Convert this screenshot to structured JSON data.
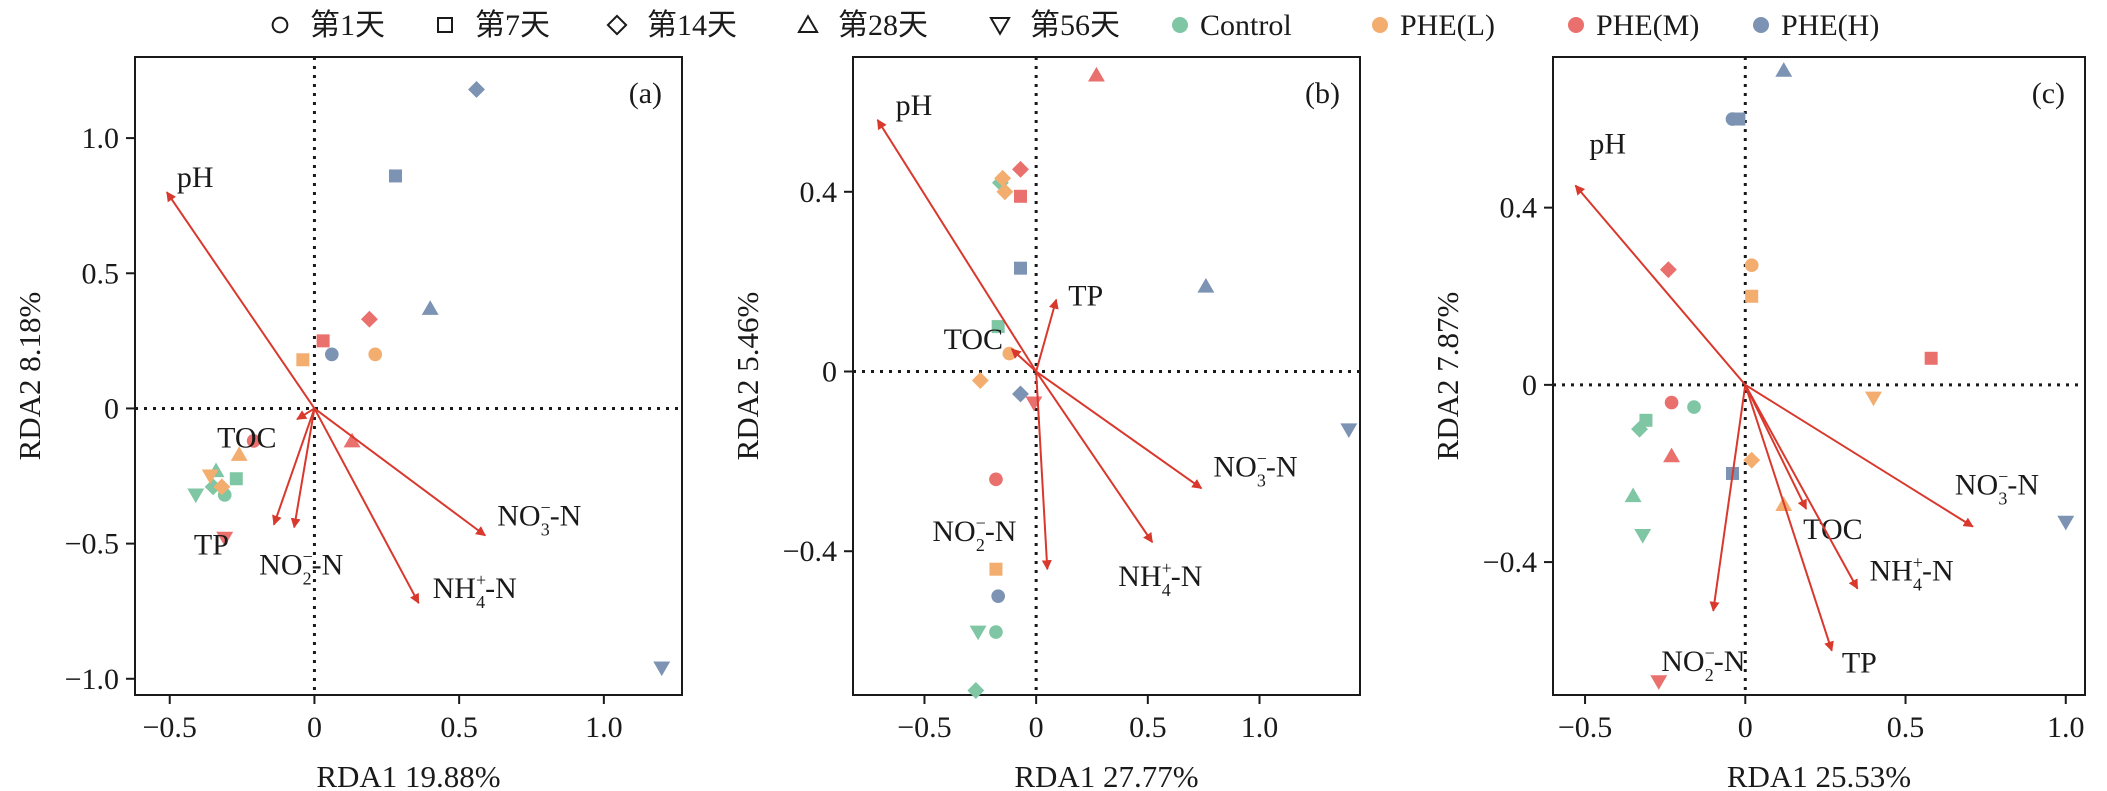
{
  "legend": {
    "shapes": [
      {
        "shape": "circle",
        "label": "第1天"
      },
      {
        "shape": "square",
        "label": "第7天"
      },
      {
        "shape": "diamond",
        "label": "第14天"
      },
      {
        "shape": "triangle",
        "label": "第28天"
      },
      {
        "shape": "triangle-down",
        "label": "第56天"
      }
    ],
    "groups": [
      {
        "name": "Control",
        "color": "#7fc6a4"
      },
      {
        "name": "PHE(L)",
        "color": "#f3ad6e"
      },
      {
        "name": "PHE(M)",
        "color": "#e9706d"
      },
      {
        "name": "PHE(H)",
        "color": "#7c93b3"
      }
    ]
  },
  "colors": {
    "axis": "#1a1a1a",
    "arrow": "#d9382d",
    "zero_line": "#1a1a1a"
  },
  "chart_data": [
    {
      "type": "scatter",
      "panel_label": "(a)",
      "xlabel": "RDA1 19.88%",
      "ylabel": "RDA2 8.18%",
      "xlim": [
        -0.62,
        1.27
      ],
      "ylim": [
        -1.06,
        1.3
      ],
      "xticks": [
        -0.5,
        0,
        0.5,
        1.0
      ],
      "xtick_labels": [
        "−0.5",
        "0",
        "0.5",
        "1.0"
      ],
      "yticks": [
        -1.0,
        -0.5,
        0,
        0.5,
        1.0
      ],
      "ytick_labels": [
        "−1.0",
        "−0.5",
        "0",
        "0.5",
        "1.0"
      ],
      "vectors": [
        {
          "label": "pH",
          "x": -0.51,
          "y": 0.8
        },
        {
          "label": "TOC",
          "x": -0.06,
          "y": -0.04
        },
        {
          "label": "TP",
          "x": -0.14,
          "y": -0.43
        },
        {
          "label": "NO2-N",
          "x": -0.07,
          "y": -0.44
        },
        {
          "label": "NO3-N",
          "x": 0.59,
          "y": -0.47
        },
        {
          "label": "NH4-N",
          "x": 0.36,
          "y": -0.72
        }
      ],
      "points": [
        {
          "group": "Control",
          "shape": "triangle",
          "x": -0.34,
          "y": -0.23
        },
        {
          "group": "Control",
          "shape": "square",
          "x": -0.27,
          "y": -0.26
        },
        {
          "group": "Control",
          "shape": "diamond",
          "x": -0.35,
          "y": -0.29
        },
        {
          "group": "Control",
          "shape": "circle",
          "x": -0.31,
          "y": -0.32
        },
        {
          "group": "Control",
          "shape": "triangle-down",
          "x": -0.41,
          "y": -0.32
        },
        {
          "group": "PHE(L)",
          "shape": "triangle",
          "x": -0.26,
          "y": -0.17
        },
        {
          "group": "PHE(L)",
          "shape": "triangle-down",
          "x": -0.36,
          "y": -0.25
        },
        {
          "group": "PHE(L)",
          "shape": "diamond",
          "x": -0.32,
          "y": -0.29
        },
        {
          "group": "PHE(L)",
          "shape": "square",
          "x": -0.04,
          "y": 0.18
        },
        {
          "group": "PHE(L)",
          "shape": "circle",
          "x": 0.21,
          "y": 0.2
        },
        {
          "group": "PHE(M)",
          "shape": "circle",
          "x": -0.21,
          "y": -0.12
        },
        {
          "group": "PHE(M)",
          "shape": "triangle-down",
          "x": -0.31,
          "y": -0.48
        },
        {
          "group": "PHE(M)",
          "shape": "square",
          "x": 0.03,
          "y": 0.25
        },
        {
          "group": "PHE(M)",
          "shape": "diamond",
          "x": 0.19,
          "y": 0.33
        },
        {
          "group": "PHE(M)",
          "shape": "triangle",
          "x": 0.13,
          "y": -0.12
        },
        {
          "group": "PHE(H)",
          "shape": "circle",
          "x": 0.06,
          "y": 0.2
        },
        {
          "group": "PHE(H)",
          "shape": "square",
          "x": 0.28,
          "y": 0.86
        },
        {
          "group": "PHE(H)",
          "shape": "triangle",
          "x": 0.4,
          "y": 0.37
        },
        {
          "group": "PHE(H)",
          "shape": "diamond",
          "x": 0.56,
          "y": 1.18
        },
        {
          "group": "PHE(H)",
          "shape": "triangle-down",
          "x": 1.2,
          "y": -0.96
        }
      ]
    },
    {
      "type": "scatter",
      "panel_label": "(b)",
      "xlabel": "RDA1 27.77%",
      "ylabel": "RDA2 5.46%",
      "xlim": [
        -0.82,
        1.45
      ],
      "ylim": [
        -0.72,
        0.7
      ],
      "xticks": [
        -0.5,
        0,
        0.5,
        1.0
      ],
      "xtick_labels": [
        "−0.5",
        "0",
        "0.5",
        "1.0"
      ],
      "yticks": [
        -0.4,
        0,
        0.4
      ],
      "ytick_labels": [
        "−0.4",
        "0",
        "0.4"
      ],
      "vectors": [
        {
          "label": "pH",
          "x": -0.71,
          "y": 0.56
        },
        {
          "label": "TP",
          "x": 0.09,
          "y": 0.16
        },
        {
          "label": "TOC",
          "x": -0.11,
          "y": 0.05
        },
        {
          "label": "NO2-N",
          "x": 0.05,
          "y": -0.44
        },
        {
          "label": "NO3-N",
          "x": 0.74,
          "y": -0.26
        },
        {
          "label": "NH4-N",
          "x": 0.52,
          "y": -0.38
        }
      ],
      "points": [
        {
          "group": "Control",
          "shape": "diamond",
          "x": -0.16,
          "y": 0.42
        },
        {
          "group": "Control",
          "shape": "square",
          "x": -0.17,
          "y": 0.1
        },
        {
          "group": "Control",
          "shape": "circle",
          "x": -0.18,
          "y": -0.58
        },
        {
          "group": "Control",
          "shape": "triangle-down",
          "x": -0.26,
          "y": -0.58
        },
        {
          "group": "Control",
          "shape": "diamond",
          "x": -0.27,
          "y": -0.71
        },
        {
          "group": "PHE(L)",
          "shape": "diamond",
          "x": -0.15,
          "y": 0.43
        },
        {
          "group": "PHE(L)",
          "shape": "diamond",
          "x": -0.14,
          "y": 0.4
        },
        {
          "group": "PHE(L)",
          "shape": "circle",
          "x": -0.12,
          "y": 0.04
        },
        {
          "group": "PHE(L)",
          "shape": "diamond",
          "x": -0.25,
          "y": -0.02
        },
        {
          "group": "PHE(L)",
          "shape": "square",
          "x": -0.18,
          "y": -0.44
        },
        {
          "group": "PHE(M)",
          "shape": "triangle",
          "x": 0.27,
          "y": 0.66
        },
        {
          "group": "PHE(M)",
          "shape": "diamond",
          "x": -0.07,
          "y": 0.45
        },
        {
          "group": "PHE(M)",
          "shape": "square",
          "x": -0.07,
          "y": 0.39
        },
        {
          "group": "PHE(M)",
          "shape": "circle",
          "x": -0.18,
          "y": -0.24
        },
        {
          "group": "PHE(M)",
          "shape": "triangle-down",
          "x": -0.01,
          "y": -0.07
        },
        {
          "group": "PHE(H)",
          "shape": "square",
          "x": -0.07,
          "y": 0.23
        },
        {
          "group": "PHE(H)",
          "shape": "diamond",
          "x": -0.07,
          "y": -0.05
        },
        {
          "group": "PHE(H)",
          "shape": "circle",
          "x": -0.17,
          "y": -0.5
        },
        {
          "group": "PHE(H)",
          "shape": "triangle",
          "x": 0.76,
          "y": 0.19
        },
        {
          "group": "PHE(H)",
          "shape": "triangle-down",
          "x": 1.4,
          "y": -0.13
        }
      ]
    },
    {
      "type": "scatter",
      "panel_label": "(c)",
      "xlabel": "RDA1 25.53%",
      "ylabel": "RDA2 7.87%",
      "xlim": [
        -0.6,
        1.06
      ],
      "ylim": [
        -0.7,
        0.74
      ],
      "xticks": [
        -0.5,
        0,
        0.5,
        1.0
      ],
      "xtick_labels": [
        "−0.5",
        "0",
        "0.5",
        "1.0"
      ],
      "yticks": [
        -0.4,
        0,
        0.4
      ],
      "ytick_labels": [
        "−0.4",
        "0",
        "0.4"
      ],
      "vectors": [
        {
          "label": "pH",
          "x": -0.53,
          "y": 0.45
        },
        {
          "label": "TOC",
          "x": 0.19,
          "y": -0.28
        },
        {
          "label": "NO2-N",
          "x": -0.1,
          "y": -0.51
        },
        {
          "label": "NO3-N",
          "x": 0.71,
          "y": -0.32
        },
        {
          "label": "NH4-N",
          "x": 0.35,
          "y": -0.46
        },
        {
          "label": "TP",
          "x": 0.27,
          "y": -0.6
        }
      ],
      "points": [
        {
          "group": "Control",
          "shape": "circle",
          "x": -0.16,
          "y": -0.05
        },
        {
          "group": "Control",
          "shape": "square",
          "x": -0.31,
          "y": -0.08
        },
        {
          "group": "Control",
          "shape": "diamond",
          "x": -0.33,
          "y": -0.1
        },
        {
          "group": "Control",
          "shape": "triangle",
          "x": -0.35,
          "y": -0.25
        },
        {
          "group": "Control",
          "shape": "triangle-down",
          "x": -0.32,
          "y": -0.34
        },
        {
          "group": "PHE(L)",
          "shape": "circle",
          "x": 0.02,
          "y": 0.27
        },
        {
          "group": "PHE(L)",
          "shape": "square",
          "x": 0.02,
          "y": 0.2
        },
        {
          "group": "PHE(L)",
          "shape": "triangle-down",
          "x": 0.4,
          "y": -0.03
        },
        {
          "group": "PHE(L)",
          "shape": "diamond",
          "x": 0.02,
          "y": -0.17
        },
        {
          "group": "PHE(L)",
          "shape": "triangle",
          "x": 0.12,
          "y": -0.27
        },
        {
          "group": "PHE(M)",
          "shape": "diamond",
          "x": -0.24,
          "y": 0.26
        },
        {
          "group": "PHE(M)",
          "shape": "circle",
          "x": -0.23,
          "y": -0.04
        },
        {
          "group": "PHE(M)",
          "shape": "triangle",
          "x": -0.23,
          "y": -0.16
        },
        {
          "group": "PHE(M)",
          "shape": "square",
          "x": 0.58,
          "y": 0.06
        },
        {
          "group": "PHE(M)",
          "shape": "triangle-down",
          "x": -0.27,
          "y": -0.67
        },
        {
          "group": "PHE(H)",
          "shape": "triangle",
          "x": 0.12,
          "y": 0.71
        },
        {
          "group": "PHE(H)",
          "shape": "square",
          "x": -0.02,
          "y": 0.6
        },
        {
          "group": "PHE(H)",
          "shape": "circle",
          "x": -0.04,
          "y": 0.6
        },
        {
          "group": "PHE(H)",
          "shape": "square",
          "x": -0.04,
          "y": -0.2
        },
        {
          "group": "PHE(H)",
          "shape": "triangle-down",
          "x": 1.0,
          "y": -0.31
        }
      ]
    }
  ]
}
